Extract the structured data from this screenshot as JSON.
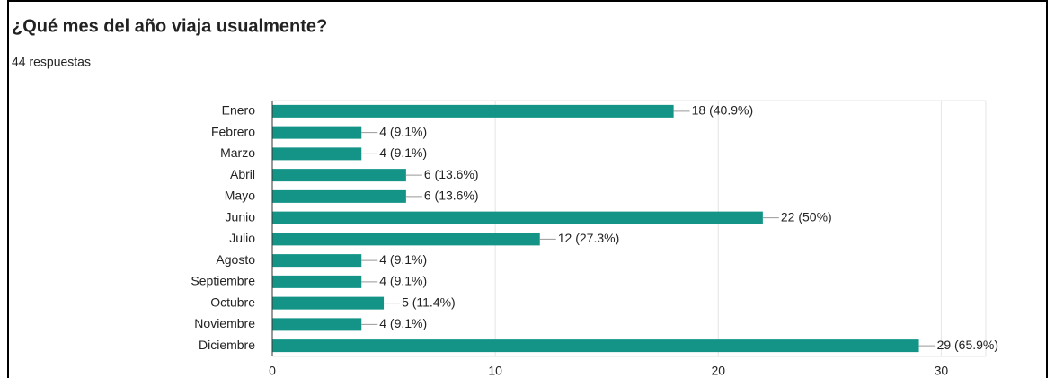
{
  "chart_data": {
    "type": "hbar",
    "title": "¿Qué mes del año viaja usualmente?",
    "subtitle": "44 respuestas",
    "categories": [
      "Enero",
      "Febrero",
      "Marzo",
      "Abril",
      "Mayo",
      "Junio",
      "Julio",
      "Agosto",
      "Septiembre",
      "Octubre",
      "Noviembre",
      "Diciembre"
    ],
    "values": [
      18,
      4,
      4,
      6,
      6,
      22,
      12,
      4,
      4,
      5,
      4,
      29
    ],
    "value_labels": [
      "18 (40.9%)",
      "4 (9.1%)",
      "4 (9.1%)",
      "6 (13.6%)",
      "6 (13.6%)",
      "22 (50%)",
      "12 (27.3%)",
      "4 (9.1%)",
      "4 (9.1%)",
      "5 (11.4%)",
      "4 (9.1%)",
      "29 (65.9%)"
    ],
    "color": "#139487",
    "xlim": [
      0,
      32
    ],
    "xticks": [
      0,
      10,
      20,
      30
    ],
    "grid": true
  }
}
